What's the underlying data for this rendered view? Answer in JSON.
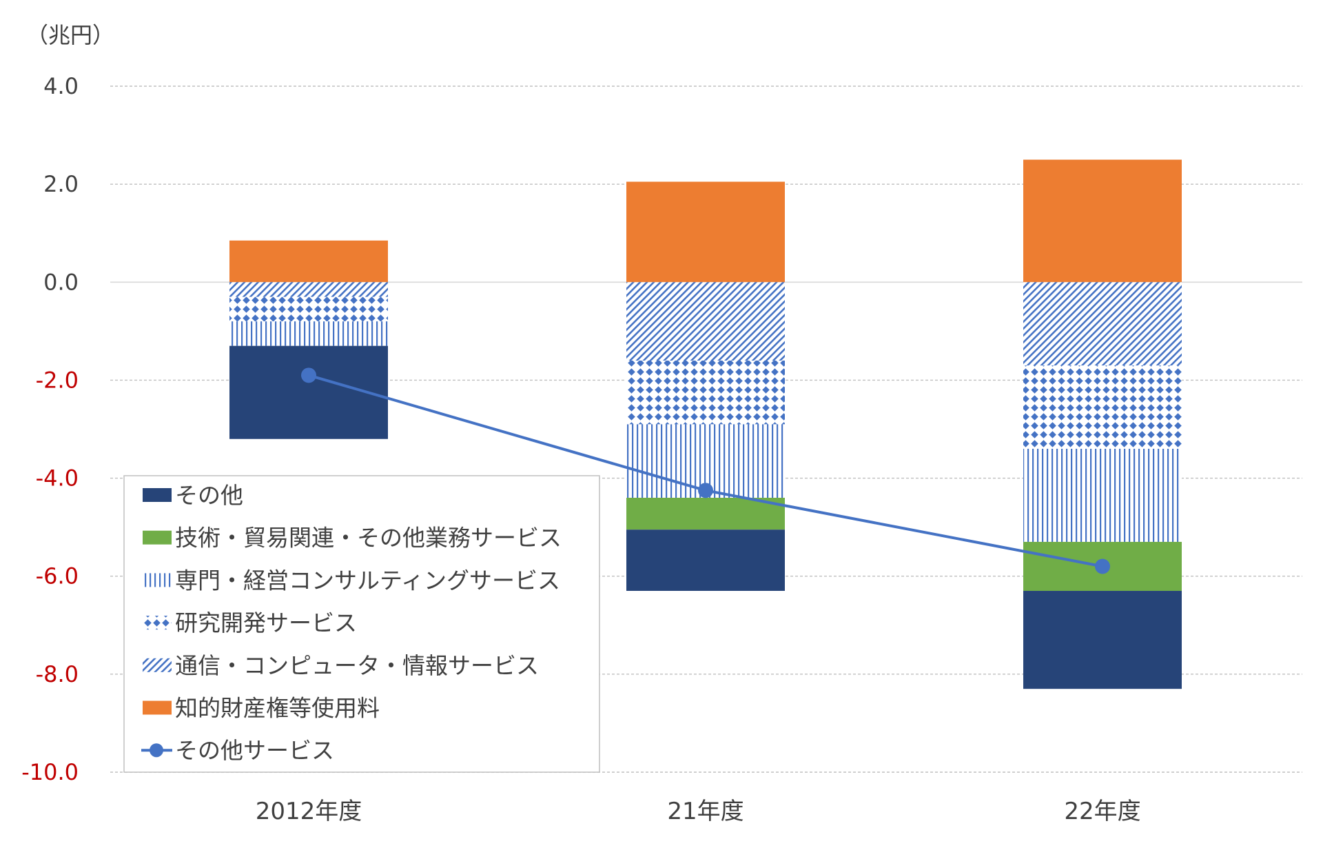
{
  "chart_data": {
    "type": "bar",
    "stacked": true,
    "unit_label": "（兆円）",
    "categories": [
      "2012年度",
      "21年度",
      "22年度"
    ],
    "ylim": [
      -10.0,
      4.0
    ],
    "yticks": [
      "4.0",
      "2.0",
      "0.0",
      "-2.0",
      "-4.0",
      "-6.0",
      "-8.0",
      "-10.0"
    ],
    "ytick_values": [
      4,
      2,
      0,
      -2,
      -4,
      -6,
      -8,
      -10
    ],
    "grid": true,
    "legend_position": "bottom-left-inside",
    "series": [
      {
        "name": "知的財産権等使用料",
        "kind": "bar",
        "pattern": "solid",
        "color": "#ED7D31",
        "values": [
          0.85,
          2.05,
          2.5
        ]
      },
      {
        "name": "通信・コンピュータ・情報サービス",
        "kind": "bar",
        "pattern": "diagonal",
        "color": "#4472C4",
        "values": [
          -0.3,
          -1.6,
          -1.7
        ]
      },
      {
        "name": "研究開発サービス",
        "kind": "bar",
        "pattern": "diamond",
        "color": "#4472C4",
        "values": [
          -0.5,
          -1.3,
          -1.7
        ]
      },
      {
        "name": "専門・経営コンサルティングサービス",
        "kind": "bar",
        "pattern": "vertical",
        "color": "#4472C4",
        "values": [
          -0.5,
          -1.5,
          -1.9
        ]
      },
      {
        "name": "技術・貿易関連・その他業務サービス",
        "kind": "bar",
        "pattern": "solid",
        "color": "#70AD47",
        "values": [
          0.0,
          -0.65,
          -1.0
        ]
      },
      {
        "name": "その他",
        "kind": "bar",
        "pattern": "solid",
        "color": "#264478",
        "values": [
          -1.9,
          -1.25,
          -2.0
        ]
      },
      {
        "name": "その他サービス",
        "kind": "line",
        "color": "#4472C4",
        "values": [
          -1.9,
          -4.25,
          -5.8
        ]
      }
    ],
    "legend_order": [
      "その他",
      "技術・貿易関連・その他業務サービス",
      "専門・経営コンサルティングサービス",
      "研究開発サービス",
      "通信・コンピュータ・情報サービス",
      "知的財産権等使用料",
      "その他サービス"
    ],
    "tick_colors": {
      "positive": "#404040",
      "negative": "#C00000"
    }
  }
}
